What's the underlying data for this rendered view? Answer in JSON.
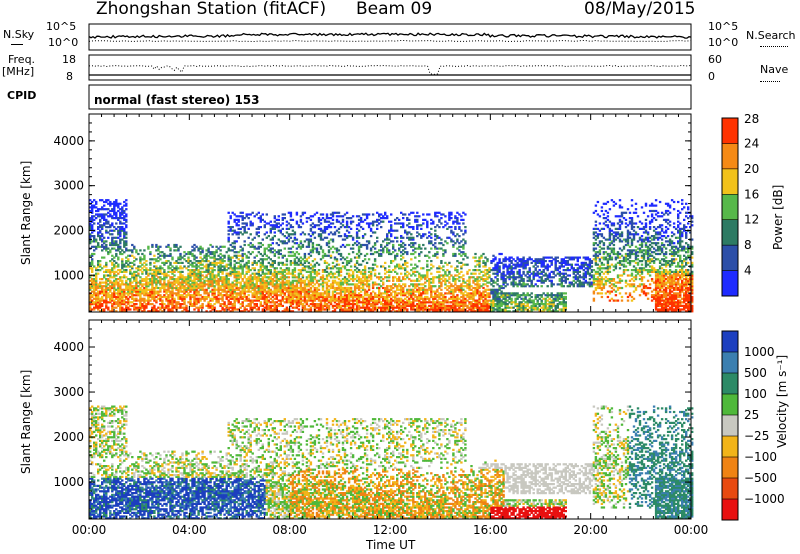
{
  "header": {
    "station": "Zhongshan Station (fitACF)",
    "beam": "Beam 09",
    "date": "08/May/2015"
  },
  "strip_labels": {
    "nsky": "N.Sky",
    "nsky_ticks": [
      "10^5",
      "10^0"
    ],
    "nsearch": "N.Search",
    "nsearch_ticks": [
      "10^5",
      "10^0"
    ],
    "freq_line1": "Freq.",
    "freq_line2": "[MHz]",
    "freq_ticks": [
      "18",
      "8"
    ],
    "nave": "Nave",
    "nave_ticks": [
      "60",
      "0"
    ],
    "cpid": "CPID",
    "cpid_value": "normal (fast stereo) 153"
  },
  "chart_data": [
    {
      "type": "heatmap",
      "name": "power",
      "ylabel": "Slant Range [km]",
      "yticks": [
        1000,
        2000,
        3000,
        4000
      ],
      "ylim": [
        180,
        4600
      ],
      "xlim_hours": [
        0,
        24
      ],
      "colorbar": {
        "label": "Power [dB]",
        "ticks": [
          "4",
          "8",
          "12",
          "16",
          "20",
          "24",
          "28"
        ],
        "colors": [
          "#1f2bff",
          "#2c4fa8",
          "#2d7a63",
          "#57b84a",
          "#f2c21b",
          "#f58a16",
          "#ff3300"
        ]
      }
    },
    {
      "type": "heatmap",
      "name": "velocity",
      "ylabel": "Slant Range [km]",
      "yticks": [
        1000,
        2000,
        3000,
        4000
      ],
      "ylim": [
        180,
        4600
      ],
      "xlim_hours": [
        0,
        24
      ],
      "colorbar": {
        "label": "Velocity [m s⁻¹]",
        "ticks": [
          "1000",
          "500",
          "100",
          "25",
          "−25",
          "−100",
          "−500",
          "−1000"
        ],
        "colors": [
          "#1c3fbf",
          "#3b7fb0",
          "#2c8a66",
          "#4fb83a",
          "#c8c8c0",
          "#f2b419",
          "#ef8314",
          "#e84a10",
          "#e81010"
        ]
      }
    }
  ],
  "xaxis": {
    "label": "Time UT",
    "ticks": [
      "00:00",
      "04:00",
      "08:00",
      "12:00",
      "16:00",
      "20:00",
      "00:00"
    ]
  }
}
